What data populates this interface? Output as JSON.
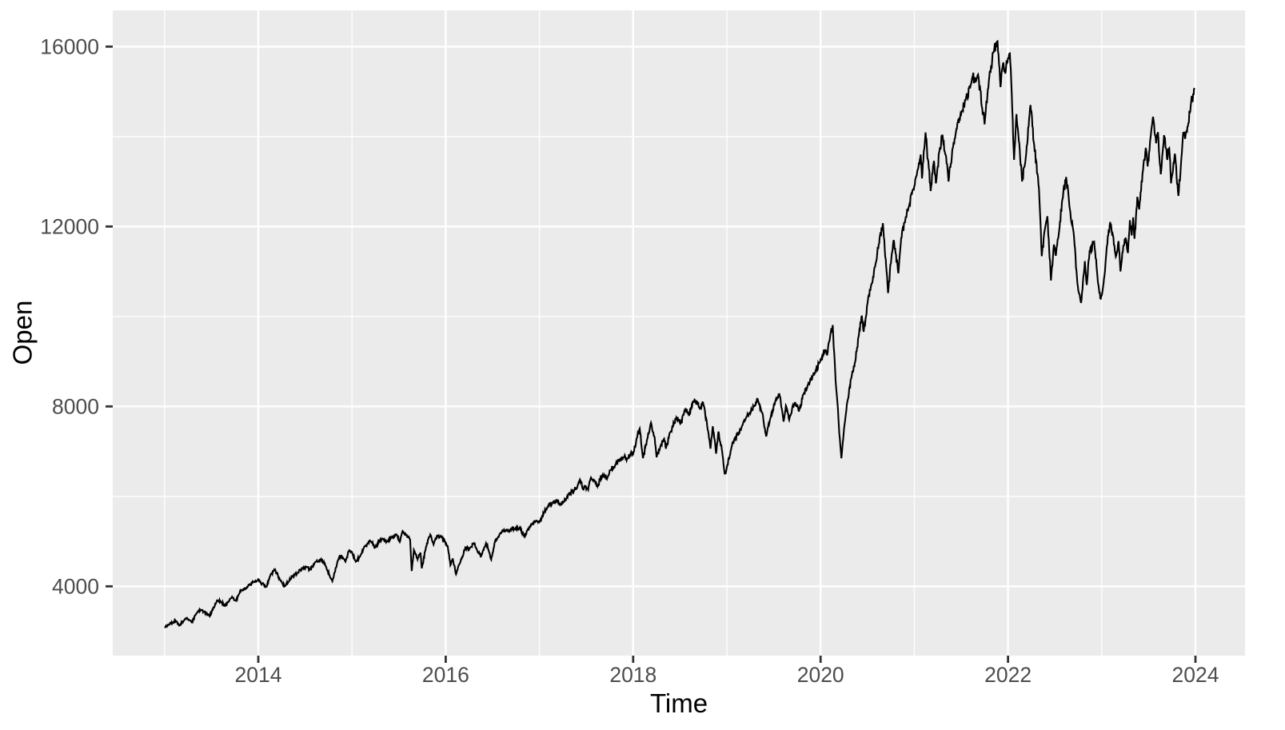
{
  "chart_data": {
    "type": "line",
    "title": "",
    "xlabel": "Time",
    "ylabel": "Open",
    "xlim": [
      2012.447,
      2024.529
    ],
    "ylim": [
      2459,
      16805
    ],
    "grid": true,
    "legend": false,
    "x_ticks_major": [
      2014,
      2016,
      2018,
      2020,
      2022,
      2024
    ],
    "x_tick_labels": [
      "2014",
      "2016",
      "2018",
      "2020",
      "2022",
      "2024"
    ],
    "x_ticks_minor": [
      2013,
      2015,
      2017,
      2019,
      2021,
      2023
    ],
    "y_ticks_major": [
      4000,
      8000,
      12000,
      16000
    ],
    "y_tick_labels": [
      "4000",
      "8000",
      "12000",
      "16000"
    ],
    "y_ticks_minor": [
      6000,
      10000,
      14000
    ],
    "colors": {
      "panel_bg": "#EBEBEB",
      "grid": "#FFFFFF",
      "line": "#000000",
      "tick_text": "#4D4D4D",
      "tick_mark": "#333333",
      "axis_title": "#000000",
      "page_bg": "#FFFFFF"
    },
    "series": [
      {
        "name": "Open",
        "color": "#000000",
        "points": [
          [
            2013.0,
            3091
          ],
          [
            2013.04,
            3150
          ],
          [
            2013.09,
            3200
          ],
          [
            2013.13,
            3222
          ],
          [
            2013.155,
            3130
          ],
          [
            2013.21,
            3250
          ],
          [
            2013.24,
            3300
          ],
          [
            2013.29,
            3200
          ],
          [
            2013.34,
            3400
          ],
          [
            2013.385,
            3480
          ],
          [
            2013.42,
            3440
          ],
          [
            2013.48,
            3335
          ],
          [
            2013.56,
            3690
          ],
          [
            2013.6,
            3660
          ],
          [
            2013.65,
            3570
          ],
          [
            2013.72,
            3770
          ],
          [
            2013.76,
            3680
          ],
          [
            2013.82,
            3920
          ],
          [
            2013.87,
            3960
          ],
          [
            2013.9,
            4040
          ],
          [
            2013.95,
            4100
          ],
          [
            2014.0,
            4160
          ],
          [
            2014.03,
            4060
          ],
          [
            2014.09,
            3997
          ],
          [
            2014.13,
            4250
          ],
          [
            2014.18,
            4371
          ],
          [
            2014.23,
            4150
          ],
          [
            2014.28,
            3999
          ],
          [
            2014.32,
            4090
          ],
          [
            2014.37,
            4240
          ],
          [
            2014.42,
            4300
          ],
          [
            2014.47,
            4400
          ],
          [
            2014.51,
            4440
          ],
          [
            2014.55,
            4370
          ],
          [
            2014.6,
            4510
          ],
          [
            2014.67,
            4610
          ],
          [
            2014.72,
            4450
          ],
          [
            2014.79,
            4116
          ],
          [
            2014.85,
            4580
          ],
          [
            2014.88,
            4680
          ],
          [
            2014.93,
            4550
          ],
          [
            2014.97,
            4800
          ],
          [
            2015.0,
            4760
          ],
          [
            2015.04,
            4551
          ],
          [
            2015.09,
            4690
          ],
          [
            2015.14,
            4900
          ],
          [
            2015.2,
            5000
          ],
          [
            2015.25,
            4870
          ],
          [
            2015.29,
            5010
          ],
          [
            2015.33,
            5060
          ],
          [
            2015.38,
            5000
          ],
          [
            2015.42,
            5080
          ],
          [
            2015.47,
            5160
          ],
          [
            2015.51,
            4990
          ],
          [
            2015.54,
            5230
          ],
          [
            2015.58,
            5130
          ],
          [
            2015.62,
            5040
          ],
          [
            2015.637,
            4340
          ],
          [
            2015.66,
            4810
          ],
          [
            2015.7,
            4600
          ],
          [
            2015.73,
            4750
          ],
          [
            2015.745,
            4400
          ],
          [
            2015.79,
            4880
          ],
          [
            2015.835,
            5150
          ],
          [
            2015.87,
            4930
          ],
          [
            2015.91,
            5130
          ],
          [
            2015.95,
            5100
          ],
          [
            2015.99,
            5010
          ],
          [
            2016.02,
            4900
          ],
          [
            2016.05,
            4472
          ],
          [
            2016.075,
            4620
          ],
          [
            2016.11,
            4270
          ],
          [
            2016.16,
            4570
          ],
          [
            2016.21,
            4870
          ],
          [
            2016.25,
            4820
          ],
          [
            2016.3,
            4960
          ],
          [
            2016.34,
            4770
          ],
          [
            2016.38,
            4678
          ],
          [
            2016.43,
            4960
          ],
          [
            2016.455,
            4820
          ],
          [
            2016.485,
            4594
          ],
          [
            2016.53,
            5030
          ],
          [
            2016.56,
            5100
          ],
          [
            2016.6,
            5220
          ],
          [
            2016.65,
            5260
          ],
          [
            2016.68,
            5210
          ],
          [
            2016.71,
            5300
          ],
          [
            2016.74,
            5270
          ],
          [
            2016.79,
            5310
          ],
          [
            2016.84,
            5100
          ],
          [
            2016.87,
            5240
          ],
          [
            2016.92,
            5380
          ],
          [
            2016.96,
            5440
          ],
          [
            2017.0,
            5429
          ],
          [
            2017.05,
            5640
          ],
          [
            2017.09,
            5780
          ],
          [
            2017.14,
            5850
          ],
          [
            2017.19,
            5900
          ],
          [
            2017.23,
            5830
          ],
          [
            2017.26,
            5870
          ],
          [
            2017.31,
            6050
          ],
          [
            2017.37,
            6130
          ],
          [
            2017.41,
            6260
          ],
          [
            2017.44,
            6340
          ],
          [
            2017.465,
            6160
          ],
          [
            2017.49,
            6230
          ],
          [
            2017.52,
            6150
          ],
          [
            2017.55,
            6420
          ],
          [
            2017.59,
            6340
          ],
          [
            2017.62,
            6220
          ],
          [
            2017.66,
            6430
          ],
          [
            2017.7,
            6450
          ],
          [
            2017.72,
            6380
          ],
          [
            2017.76,
            6590
          ],
          [
            2017.81,
            6700
          ],
          [
            2017.85,
            6790
          ],
          [
            2017.9,
            6870
          ],
          [
            2017.94,
            6840
          ],
          [
            2017.97,
            6940
          ],
          [
            2018.0,
            6938
          ],
          [
            2018.04,
            7300
          ],
          [
            2018.07,
            7505
          ],
          [
            2018.105,
            6850
          ],
          [
            2018.15,
            7280
          ],
          [
            2018.19,
            7640
          ],
          [
            2018.23,
            7300
          ],
          [
            2018.25,
            6870
          ],
          [
            2018.29,
            7110
          ],
          [
            2018.33,
            7280
          ],
          [
            2018.35,
            7060
          ],
          [
            2018.4,
            7440
          ],
          [
            2018.46,
            7750
          ],
          [
            2018.51,
            7630
          ],
          [
            2018.56,
            7930
          ],
          [
            2018.59,
            7820
          ],
          [
            2018.655,
            8150
          ],
          [
            2018.69,
            8060
          ],
          [
            2018.72,
            7950
          ],
          [
            2018.745,
            8090
          ],
          [
            2018.8,
            7450
          ],
          [
            2018.825,
            7060
          ],
          [
            2018.85,
            7560
          ],
          [
            2018.885,
            6950
          ],
          [
            2018.91,
            7440
          ],
          [
            2018.95,
            7000
          ],
          [
            2018.978,
            6490
          ],
          [
            2019.0,
            6650
          ],
          [
            2019.05,
            7100
          ],
          [
            2019.08,
            7280
          ],
          [
            2019.13,
            7420
          ],
          [
            2019.16,
            7560
          ],
          [
            2019.2,
            7720
          ],
          [
            2019.24,
            7850
          ],
          [
            2019.29,
            8010
          ],
          [
            2019.33,
            8160
          ],
          [
            2019.38,
            7850
          ],
          [
            2019.42,
            7333
          ],
          [
            2019.47,
            7780
          ],
          [
            2019.52,
            8130
          ],
          [
            2019.56,
            8290
          ],
          [
            2019.59,
            7900
          ],
          [
            2019.605,
            7662
          ],
          [
            2019.63,
            8020
          ],
          [
            2019.65,
            7850
          ],
          [
            2019.665,
            7700
          ],
          [
            2019.7,
            8000
          ],
          [
            2019.73,
            8080
          ],
          [
            2019.77,
            7900
          ],
          [
            2019.82,
            8270
          ],
          [
            2019.87,
            8520
          ],
          [
            2019.91,
            8630
          ],
          [
            2019.95,
            8820
          ],
          [
            2019.99,
            8970
          ],
          [
            2020.005,
            9039
          ],
          [
            2020.05,
            9270
          ],
          [
            2020.07,
            9150
          ],
          [
            2020.1,
            9520
          ],
          [
            2020.13,
            9810
          ],
          [
            2020.16,
            8570
          ],
          [
            2020.185,
            7950
          ],
          [
            2020.2,
            7400
          ],
          [
            2020.222,
            6847
          ],
          [
            2020.25,
            7500
          ],
          [
            2020.29,
            8150
          ],
          [
            2020.33,
            8650
          ],
          [
            2020.37,
            9000
          ],
          [
            2020.41,
            9620
          ],
          [
            2020.44,
            10020
          ],
          [
            2020.46,
            9660
          ],
          [
            2020.5,
            10280
          ],
          [
            2020.54,
            10700
          ],
          [
            2020.58,
            11100
          ],
          [
            2020.62,
            11600
          ],
          [
            2020.665,
            12074
          ],
          [
            2020.72,
            10520
          ],
          [
            2020.76,
            11400
          ],
          [
            2020.78,
            11700
          ],
          [
            2020.83,
            10960
          ],
          [
            2020.87,
            11900
          ],
          [
            2020.9,
            12090
          ],
          [
            2020.94,
            12430
          ],
          [
            2020.97,
            12740
          ],
          [
            2021.0,
            12900
          ],
          [
            2021.04,
            13280
          ],
          [
            2021.068,
            13600
          ],
          [
            2021.082,
            13070
          ],
          [
            2021.12,
            14090
          ],
          [
            2021.175,
            12790
          ],
          [
            2021.21,
            13460
          ],
          [
            2021.23,
            12960
          ],
          [
            2021.27,
            13700
          ],
          [
            2021.3,
            14040
          ],
          [
            2021.34,
            13540
          ],
          [
            2021.365,
            13000
          ],
          [
            2021.41,
            13750
          ],
          [
            2021.45,
            14170
          ],
          [
            2021.5,
            14500
          ],
          [
            2021.55,
            14840
          ],
          [
            2021.6,
            15130
          ],
          [
            2021.62,
            15330
          ],
          [
            2021.65,
            15250
          ],
          [
            2021.68,
            15380
          ],
          [
            2021.75,
            14270
          ],
          [
            2021.8,
            15330
          ],
          [
            2021.85,
            15900
          ],
          [
            2021.888,
            16120
          ],
          [
            2021.92,
            15100
          ],
          [
            2021.95,
            15650
          ],
          [
            2021.97,
            15400
          ],
          [
            2022.0,
            15750
          ],
          [
            2022.02,
            15850
          ],
          [
            2022.04,
            14950
          ],
          [
            2022.065,
            13480
          ],
          [
            2022.09,
            14500
          ],
          [
            2022.12,
            13850
          ],
          [
            2022.15,
            13000
          ],
          [
            2022.19,
            13550
          ],
          [
            2022.24,
            14700
          ],
          [
            2022.28,
            13800
          ],
          [
            2022.33,
            12850
          ],
          [
            2022.36,
            11340
          ],
          [
            2022.39,
            11900
          ],
          [
            2022.42,
            12230
          ],
          [
            2022.458,
            10800
          ],
          [
            2022.49,
            11600
          ],
          [
            2022.51,
            11350
          ],
          [
            2022.54,
            11800
          ],
          [
            2022.58,
            12600
          ],
          [
            2022.62,
            13100
          ],
          [
            2022.66,
            12380
          ],
          [
            2022.7,
            11870
          ],
          [
            2022.74,
            10750
          ],
          [
            2022.75,
            10580
          ],
          [
            2022.78,
            10300
          ],
          [
            2022.82,
            11230
          ],
          [
            2022.84,
            10700
          ],
          [
            2022.87,
            11450
          ],
          [
            2022.92,
            11650
          ],
          [
            2022.95,
            11000
          ],
          [
            2022.985,
            10400
          ],
          [
            2023.0,
            10470
          ],
          [
            2023.02,
            10740
          ],
          [
            2023.05,
            11450
          ],
          [
            2023.09,
            12100
          ],
          [
            2023.12,
            11800
          ],
          [
            2023.15,
            11330
          ],
          [
            2023.18,
            11675
          ],
          [
            2023.2,
            11000
          ],
          [
            2023.23,
            11570
          ],
          [
            2023.26,
            11700
          ],
          [
            2023.28,
            11410
          ],
          [
            2023.3,
            12140
          ],
          [
            2023.32,
            11800
          ],
          [
            2023.335,
            12200
          ],
          [
            2023.35,
            11730
          ],
          [
            2023.38,
            12660
          ],
          [
            2023.4,
            12380
          ],
          [
            2023.44,
            13240
          ],
          [
            2023.47,
            13750
          ],
          [
            2023.49,
            13335
          ],
          [
            2023.52,
            13960
          ],
          [
            2023.548,
            14440
          ],
          [
            2023.58,
            13850
          ],
          [
            2023.6,
            14100
          ],
          [
            2023.63,
            13160
          ],
          [
            2023.665,
            14030
          ],
          [
            2023.7,
            13480
          ],
          [
            2023.72,
            13740
          ],
          [
            2023.74,
            12960
          ],
          [
            2023.78,
            13620
          ],
          [
            2023.818,
            12680
          ],
          [
            2023.85,
            13520
          ],
          [
            2023.87,
            14100
          ],
          [
            2023.89,
            13950
          ],
          [
            2023.92,
            14230
          ],
          [
            2023.95,
            14690
          ],
          [
            2023.99,
            15080
          ]
        ]
      }
    ]
  }
}
